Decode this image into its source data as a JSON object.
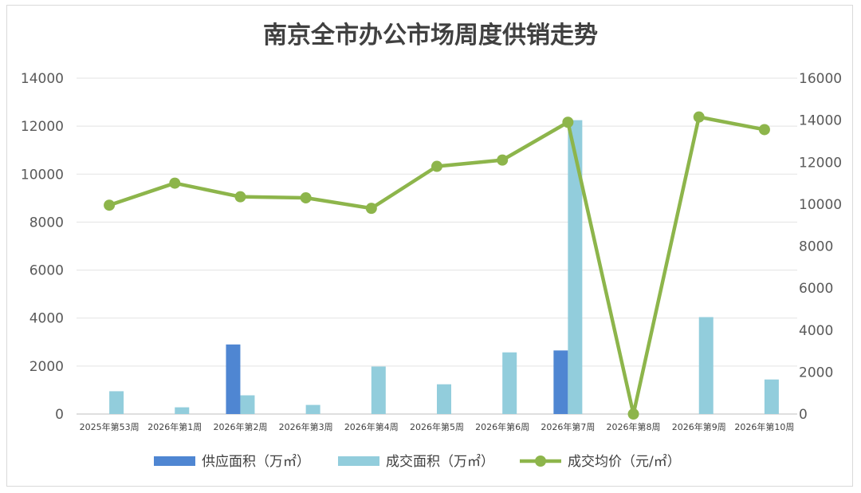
{
  "chart_data": {
    "type": "bar-line-combo",
    "title": "南京全市办公市场周度供销走势",
    "categories": [
      "2025年第53周",
      "2026年第1周",
      "2026年第2周",
      "2026年第3周",
      "2026年第4周",
      "2026年第5周",
      "2026年第6周",
      "2026年第7周",
      "2026年第8周",
      "2026年第9周",
      "2026年第10周"
    ],
    "y_left": {
      "min": 0,
      "max": 14000,
      "ticks": [
        0,
        2000,
        4000,
        6000,
        8000,
        10000,
        12000,
        14000
      ]
    },
    "y_right": {
      "min": 0,
      "max": 16000,
      "ticks": [
        0,
        2000,
        4000,
        6000,
        8000,
        10000,
        12000,
        14000,
        16000
      ]
    },
    "grid": true,
    "legend_position": "bottom",
    "series": [
      {
        "name": "供应面积（万㎡）",
        "type": "bar",
        "axis": "left",
        "color": "#4f86d2",
        "values": [
          0,
          0,
          2900,
          0,
          0,
          0,
          0,
          2650,
          0,
          0,
          0
        ]
      },
      {
        "name": "成交面积（万㎡）",
        "type": "bar",
        "axis": "left",
        "color": "#92cddc",
        "values": [
          950,
          280,
          780,
          380,
          1980,
          1240,
          2570,
          12250,
          0,
          4040,
          1440
        ]
      },
      {
        "name": "成交均价（元/㎡）",
        "type": "line",
        "axis": "right",
        "color": "#8db54b",
        "values": [
          9950,
          11000,
          10350,
          10300,
          9800,
          11800,
          12100,
          13900,
          0,
          14150,
          13550
        ]
      }
    ]
  }
}
